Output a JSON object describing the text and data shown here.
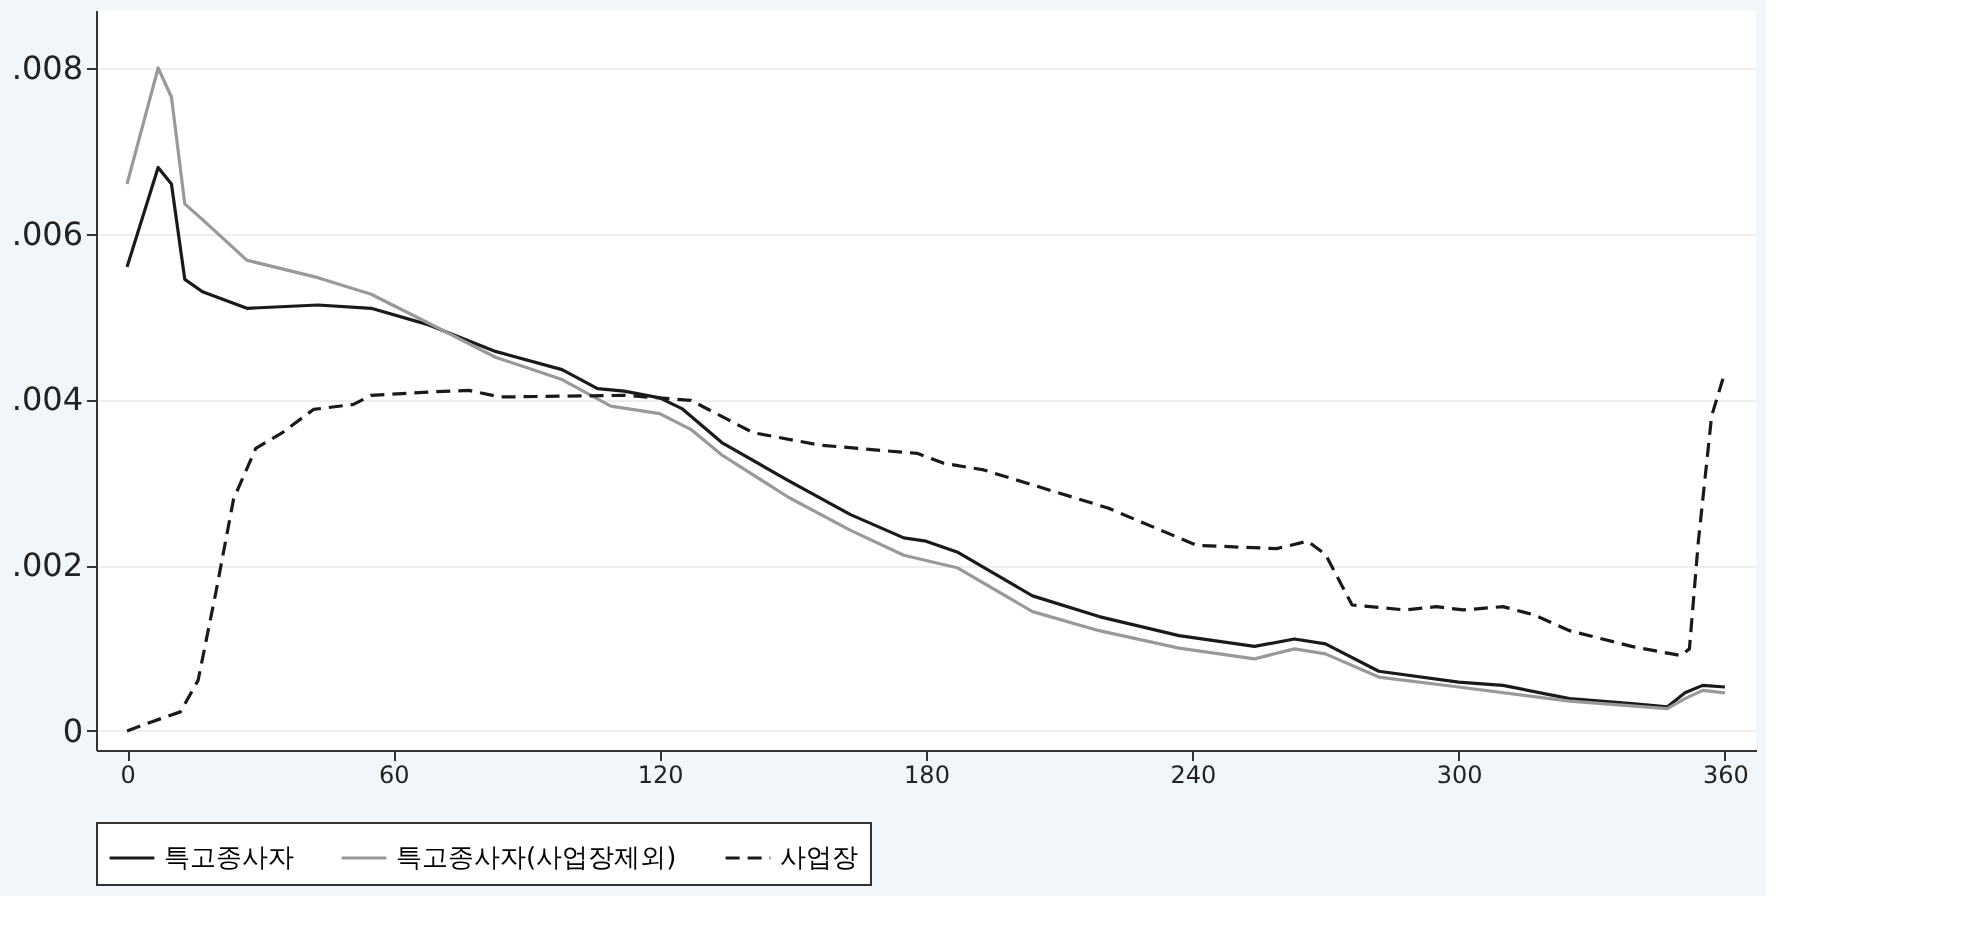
{
  "chart_data": {
    "type": "line",
    "xlim": [
      -7,
      367
    ],
    "xticks": [
      0,
      60,
      120,
      180,
      240,
      300,
      360
    ],
    "ylim": [
      -0.00023,
      0.0087
    ],
    "yticks": [
      {
        "value": 0,
        "label": "0"
      },
      {
        "value": 0.002,
        "label": ".002"
      },
      {
        "value": 0.004,
        "label": ".004"
      },
      {
        "value": 0.006,
        "label": ".006"
      },
      {
        "value": 0.008,
        "label": ".008"
      }
    ],
    "grid": "y",
    "legend": "bottom",
    "marker": "none",
    "series": [
      {
        "name": "특고종사자",
        "color": "#1a1a1a",
        "line_style": "solid",
        "x": [
          0,
          7,
          10,
          13,
          17,
          27,
          43,
          55,
          68,
          83,
          98,
          106,
          112,
          120,
          125,
          134,
          149,
          163,
          175,
          180,
          187,
          204,
          219,
          237,
          254,
          263,
          270,
          282,
          300,
          310,
          325,
          339,
          347,
          351,
          355,
          360
        ],
        "values": [
          0.0056,
          0.0068,
          0.0066,
          0.00545,
          0.0053,
          0.0051,
          0.00514,
          0.0051,
          0.0049,
          0.00458,
          0.00436,
          0.00413,
          0.0041,
          0.00402,
          0.00389,
          0.00348,
          0.00302,
          0.00261,
          0.00233,
          0.00229,
          0.00216,
          0.00163,
          0.00138,
          0.00115,
          0.00102,
          0.00111,
          0.00105,
          0.00072,
          0.00059,
          0.00055,
          0.00039,
          0.00033,
          0.00029,
          0.00046,
          0.00055,
          0.00053
        ]
      },
      {
        "name": "특고종사자(사업장제외)",
        "color": "#999999",
        "line_style": "solid",
        "x": [
          0,
          7,
          10,
          13,
          17,
          27,
          43,
          55,
          68,
          83,
          98,
          109,
          120,
          127,
          134,
          149,
          163,
          175,
          187,
          204,
          219,
          237,
          254,
          263,
          270,
          282,
          300,
          325,
          347,
          351,
          355,
          360
        ],
        "values": [
          0.0066,
          0.008,
          0.00765,
          0.00636,
          0.00617,
          0.00568,
          0.00547,
          0.00527,
          0.00492,
          0.00451,
          0.00424,
          0.00392,
          0.00383,
          0.00364,
          0.00333,
          0.00282,
          0.00242,
          0.00212,
          0.00197,
          0.00144,
          0.00121,
          0.001,
          0.00087,
          0.00099,
          0.00093,
          0.00065,
          0.00053,
          0.00036,
          0.00027,
          0.00039,
          0.00049,
          0.00046
        ]
      },
      {
        "name": "사업장",
        "color": "#1a1a1a",
        "line_style": "dashed",
        "x": [
          0,
          5,
          12,
          16,
          20,
          24,
          29,
          35,
          42,
          51,
          55,
          68,
          77,
          84,
          98,
          112,
          127,
          141,
          156,
          171,
          178,
          184,
          193,
          207,
          221,
          241,
          259,
          266,
          270,
          276,
          288,
          295,
          301,
          310,
          317,
          325,
          339,
          350,
          352,
          354,
          357,
          360
        ],
        "values": [
          0,
          0.0001,
          0.00023,
          0.00061,
          0.00167,
          0.0028,
          0.00341,
          0.0036,
          0.00388,
          0.00394,
          0.00405,
          0.00409,
          0.00411,
          0.00403,
          0.00404,
          0.00405,
          0.00399,
          0.0036,
          0.00345,
          0.00338,
          0.00335,
          0.00323,
          0.00315,
          0.00292,
          0.00269,
          0.00224,
          0.0022,
          0.00229,
          0.00213,
          0.00152,
          0.00146,
          0.0015,
          0.00146,
          0.0015,
          0.0014,
          0.00121,
          0.00102,
          0.00091,
          0.00099,
          0.00228,
          0.0038,
          0.00433
        ]
      }
    ]
  }
}
